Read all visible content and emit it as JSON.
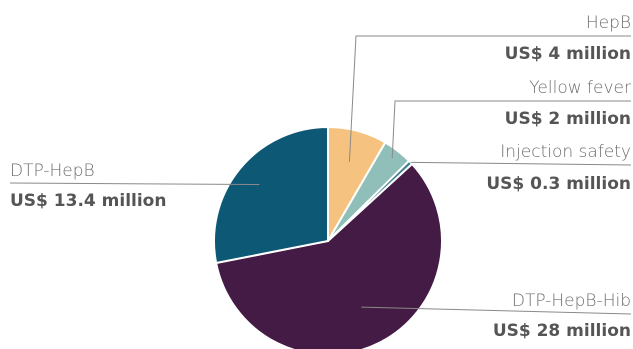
{
  "chart_data": {
    "type": "pie",
    "unit": "US$ million",
    "slices": [
      {
        "name": "HepB",
        "value": 4,
        "value_label": "US$ 4 million",
        "color": "#f6c27f"
      },
      {
        "name": "Yellow fever",
        "value": 2,
        "value_label": "US$ 2 million",
        "color": "#8fbfb8"
      },
      {
        "name": "Injection safety",
        "value": 0.3,
        "value_label": "US$ 0.3 million",
        "color": "#3f7f92"
      },
      {
        "name": "DTP-HepB-Hib",
        "value": 28,
        "value_label": "US$ 28 million",
        "color": "#441b44"
      },
      {
        "name": "DTP-HepB",
        "value": 13.4,
        "value_label": "US$ 13.4 million",
        "color": "#0d5875"
      }
    ]
  }
}
